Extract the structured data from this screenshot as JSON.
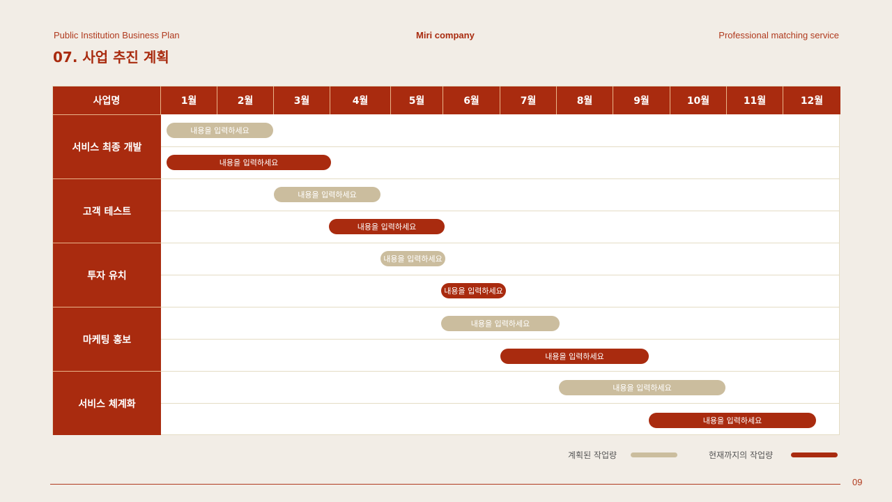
{
  "header": {
    "left": "Public Institution Business Plan",
    "center": "Miri company",
    "right": "Professional matching service",
    "title": "07. 사업 추진 계획"
  },
  "table": {
    "name_header": "사업명",
    "months": [
      "1월",
      "2월",
      "3월",
      "4월",
      "5월",
      "6월",
      "7월",
      "8월",
      "9월",
      "10월",
      "11월",
      "12월"
    ],
    "projects": [
      "서비스 최종 개발",
      "고객 테스트",
      "투자 유치",
      "마케팅 홍보",
      "서비스 체계화"
    ],
    "bar_label": "내용을 입력하세요"
  },
  "legend": {
    "planned": "계획된 작업량",
    "actual": "현재까지의 작업량"
  },
  "colors": {
    "accent": "#a92b0f",
    "planned": "#cbbd9e",
    "background": "#f2ede6"
  },
  "page_number": "09"
}
